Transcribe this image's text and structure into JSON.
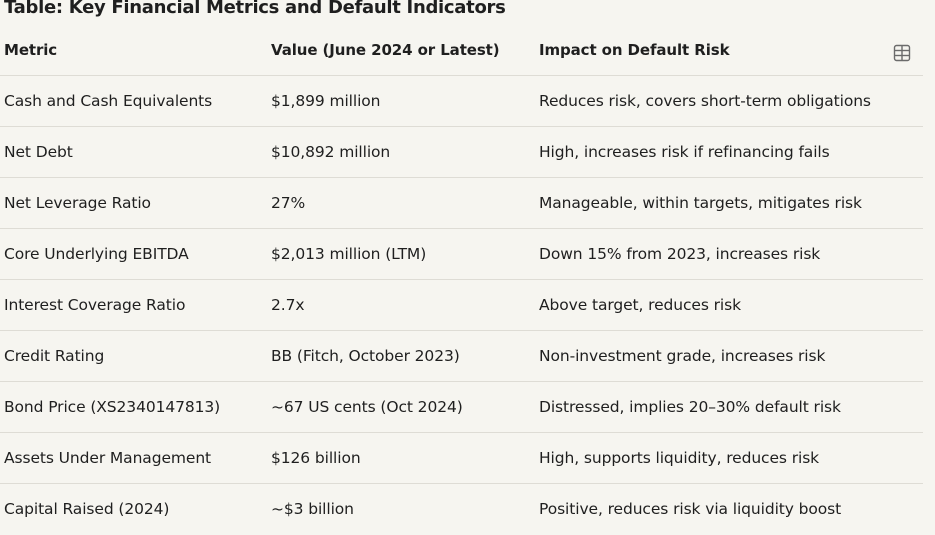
{
  "title": "Table: Key Financial Metrics and Default Indicators",
  "icons": {
    "table_toggle": "table-grid-icon"
  },
  "headers": [
    "Metric",
    "Value (June 2024 or Latest)",
    "Impact on Default Risk"
  ],
  "rows": [
    [
      "Cash and Cash Equivalents",
      "$1,899 million",
      "Reduces risk, covers short-term obligations"
    ],
    [
      "Net Debt",
      "$10,892 million",
      "High, increases risk if refinancing fails"
    ],
    [
      "Net Leverage Ratio",
      "27%",
      "Manageable, within targets, mitigates risk"
    ],
    [
      "Core Underlying EBITDA",
      "$2,013 million (LTM)",
      "Down 15% from 2023, increases risk"
    ],
    [
      "Interest Coverage Ratio",
      "2.7x",
      "Above target, reduces risk"
    ],
    [
      "Credit Rating",
      "BB (Fitch, October 2023)",
      "Non-investment grade, increases risk"
    ],
    [
      "Bond Price (XS2340147813)",
      "~67 US cents (Oct 2024)",
      "Distressed, implies 20–30% default risk"
    ],
    [
      "Assets Under Management",
      "$126 billion",
      "High, supports liquidity, reduces risk"
    ],
    [
      "Capital Raised (2024)",
      "~$3 billion",
      "Positive, reduces risk via liquidity boost"
    ]
  ]
}
